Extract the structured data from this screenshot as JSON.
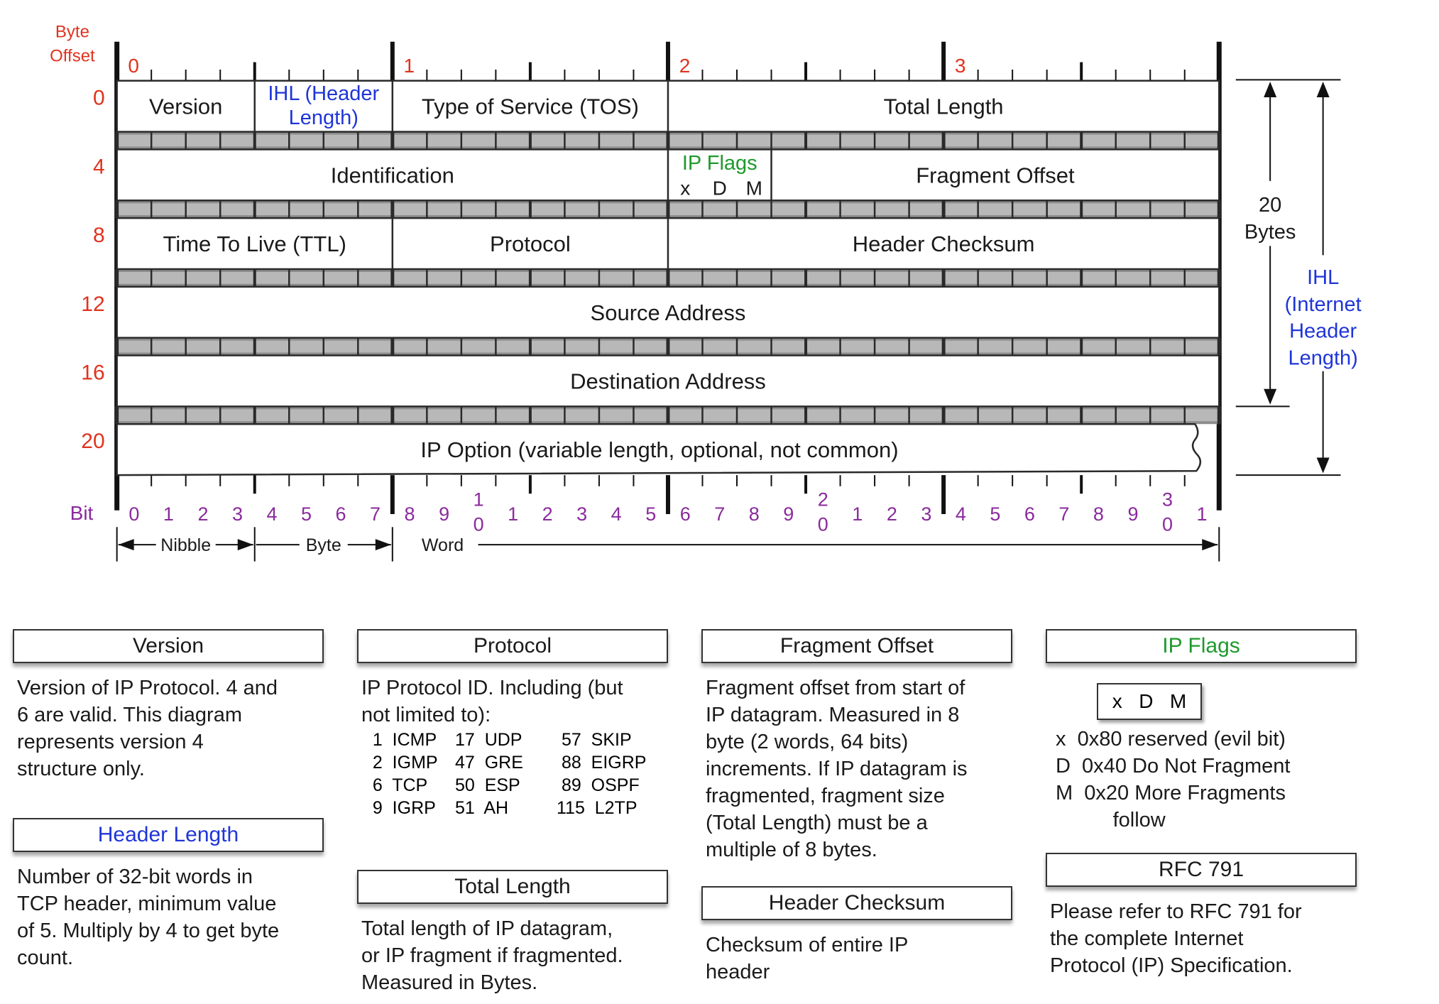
{
  "header": {
    "byte_offset_label": [
      "Byte",
      "Offset"
    ],
    "bit_label": "Bit",
    "byte_numbers": [
      "0",
      "1",
      "2",
      "3"
    ],
    "row_offsets": [
      "0",
      "4",
      "8",
      "12",
      "16",
      "20"
    ],
    "bit_numbers": [
      "0",
      "1",
      "2",
      "3",
      "4",
      "5",
      "6",
      "7",
      "8",
      "9",
      "1\n0",
      "1",
      "2",
      "3",
      "4",
      "5",
      "6",
      "7",
      "8",
      "9",
      "2\n0",
      "1",
      "2",
      "3",
      "4",
      "5",
      "6",
      "7",
      "8",
      "9",
      "3\n0",
      "1"
    ]
  },
  "fields": {
    "version": "Version",
    "ihl": [
      "IHL (Header",
      "Length)"
    ],
    "tos": "Type of Service (TOS)",
    "total_length": "Total Length",
    "identification": "Identification",
    "ip_flags": "IP Flags",
    "flag_letters": [
      "x",
      "D",
      "M"
    ],
    "fragment_offset": "Fragment Offset",
    "ttl": "Time To Live (TTL)",
    "protocol": "Protocol",
    "header_checksum": "Header Checksum",
    "source_address": "Source Address",
    "destination_address": "Destination Address",
    "ip_option": "IP Option (variable length, optional, not common)"
  },
  "right_labels": {
    "bytes": [
      "20",
      "Bytes"
    ],
    "ihl": [
      "IHL",
      "(Internet",
      "Header",
      "Length)"
    ]
  },
  "units": {
    "nibble": "Nibble",
    "byte": "Byte",
    "word": "Word"
  },
  "boxes": {
    "version": {
      "title": "Version",
      "text": "Version of IP Protocol.  4 and\n6 are valid.  This diagram\nrepresents version 4\nstructure only."
    },
    "header_length": {
      "title": "Header Length",
      "text": "Number of 32-bit words in\nTCP header, minimum value\nof 5.  Multiply by 4 to get byte\ncount."
    },
    "protocol": {
      "title": "Protocol",
      "text": "IP Protocol ID.  Including (but\nnot limited to):",
      "table": [
        [
          "  1  ICMP",
          "17  UDP",
          " 57  SKIP"
        ],
        [
          "  2  IGMP",
          "47  GRE",
          " 88  EIGRP"
        ],
        [
          "  6  TCP",
          "50  ESP",
          " 89  OSPF"
        ],
        [
          "  9  IGRP",
          "51  AH",
          "115  L2TP"
        ]
      ]
    },
    "total_length": {
      "title": "Total Length",
      "text": "Total length of IP datagram,\nor IP fragment if fragmented.\nMeasured in Bytes."
    },
    "fragment_offset": {
      "title": "Fragment Offset",
      "text": "Fragment offset from start of\nIP datagram.  Measured in 8\nbyte (2 words, 64 bits)\nincrements.  If IP datagram is\nfragmented, fragment size\n(Total Length) must be a\nmultiple of 8 bytes."
    },
    "header_checksum": {
      "title": "Header Checksum",
      "text": "Checksum of entire IP\nheader"
    },
    "ip_flags": {
      "title": "IP Flags",
      "flag_box": [
        "x",
        "D",
        "M"
      ],
      "lines": [
        "x  0x80 reserved (evil bit)",
        "D  0x40 Do Not Fragment",
        "M  0x20 More Fragments",
        "          follow"
      ]
    },
    "rfc": {
      "title": "RFC 791",
      "text": "Please refer to RFC 791 for\nthe complete Internet\nProtocol (IP) Specification."
    }
  },
  "colors": {
    "byte_offset": "#e0331f",
    "bit_numbers": "#8a2a9c",
    "ihl": "#1f35d8",
    "ip_flags": "#1e9a2c",
    "lines": "#1a1a1a"
  }
}
